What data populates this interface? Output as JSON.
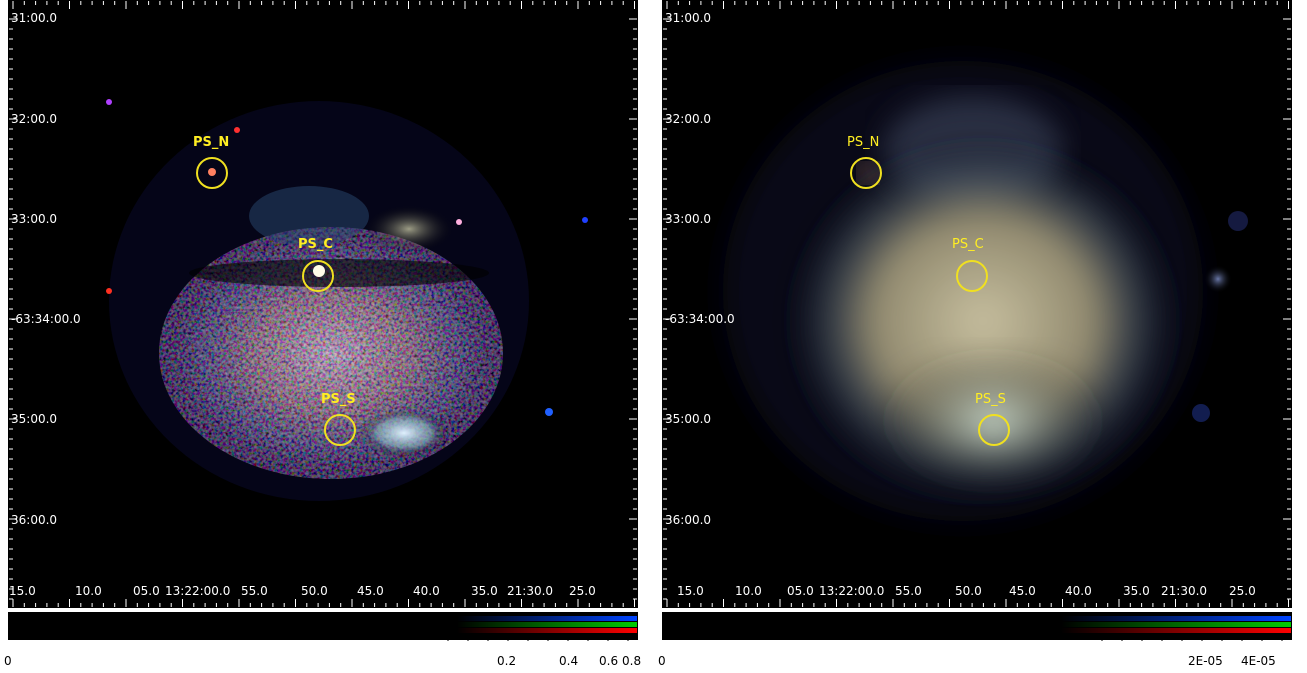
{
  "left_panel": {
    "y_labels": [
      "31:00.0",
      "32:00.0",
      "33:00.0",
      "-63:34:00.0",
      "35:00.0",
      "36:00.0"
    ],
    "x_labels": [
      "15.0",
      "10.0",
      "05.0",
      "13:22:00.0",
      "55.0",
      "50.0",
      "45.0",
      "40.0",
      "35.0",
      "21:30.0",
      "25.0"
    ],
    "sources": [
      {
        "label": "PS_N"
      },
      {
        "label": "PS_C"
      },
      {
        "label": "PS_S"
      }
    ],
    "colorbar_labels": [
      "0",
      "0.2",
      "0.4",
      "0.6",
      "0.8"
    ]
  },
  "right_panel": {
    "y_labels": [
      "31:00.0",
      "32:00.0",
      "33:00.0",
      "-63:34:00.0",
      "35:00.0",
      "36:00.0"
    ],
    "x_labels": [
      "15.0",
      "10.0",
      "05.0",
      "13:22:00.0",
      "55.0",
      "50.0",
      "45.0",
      "40.0",
      "35.0",
      "21:30.0",
      "25.0"
    ],
    "sources": [
      {
        "label": "PS_N"
      },
      {
        "label": "PS_C"
      },
      {
        "label": "PS_S"
      }
    ],
    "colorbar_labels": [
      "0",
      "2E-05",
      "4E-05"
    ]
  },
  "colors": {
    "annotation": "#f0e020",
    "background": "#000000",
    "colorbar_red": "#ff0000",
    "colorbar_green": "#00cc00",
    "colorbar_blue": "#0044ff"
  }
}
